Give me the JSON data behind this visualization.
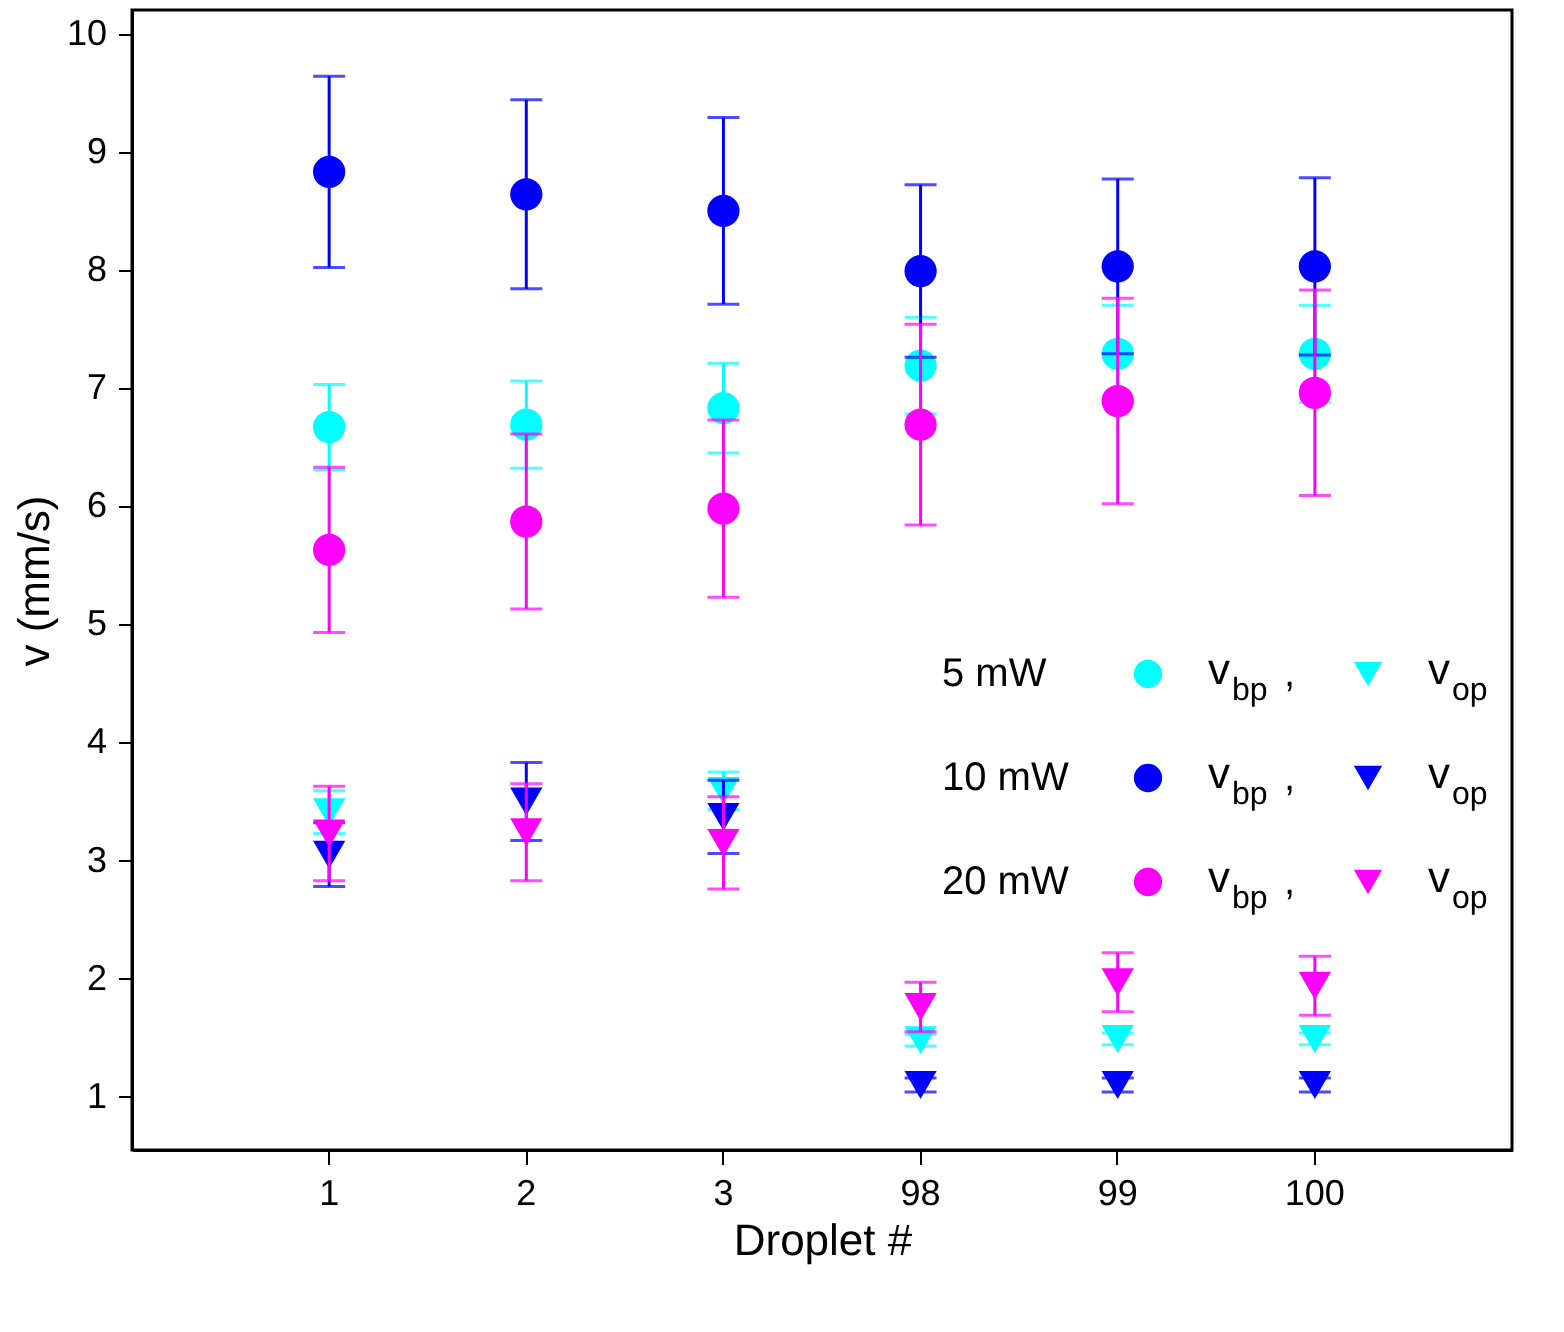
{
  "chart_data": {
    "type": "scatter",
    "xlabel": "Droplet #",
    "ylabel": "v (mm/s)",
    "categories": [
      "1",
      "2",
      "3",
      "98",
      "99",
      "100"
    ],
    "ylim": [
      0.55,
      10.2
    ],
    "yticks": [
      1,
      2,
      3,
      4,
      5,
      6,
      7,
      8,
      9,
      10
    ],
    "grid": false,
    "legend": "right",
    "annotations": [
      "5 mW",
      "10 mW",
      "20 mW"
    ],
    "series": [
      {
        "name": "v$_{bp}$ ,",
        "color": "#00ffff",
        "marker": "circle",
        "values": [
          6.67,
          6.69,
          6.83,
          7.19,
          7.29,
          7.29
        ],
        "errors": [
          0.36,
          0.37,
          0.38,
          0.41,
          0.41,
          0.41
        ]
      },
      {
        "name": "v$_{op}$",
        "color": "#00ffff",
        "marker": "triangle",
        "values": [
          3.41,
          null,
          3.59,
          1.48,
          1.49,
          1.49
        ],
        "errors": [
          0.18,
          null,
          0.16,
          0.05,
          0.05,
          0.05
        ]
      },
      {
        "name": "v$_{bp}$ ,",
        "color": "#0000ff",
        "marker": "circle",
        "values": [
          8.83,
          8.64,
          8.5,
          7.99,
          8.03,
          8.03
        ],
        "errors": [
          0.81,
          0.8,
          0.79,
          0.73,
          0.74,
          0.75
        ]
      },
      {
        "name": "v$_{op}$",
        "color": "#0000ff",
        "marker": "triangle",
        "values": [
          3.05,
          3.5,
          3.37,
          1.1,
          1.1,
          1.1
        ],
        "errors": [
          0.27,
          0.33,
          0.31,
          0.06,
          0.06,
          0.06
        ]
      },
      {
        "name": "v$_{bp}$ ,",
        "color": "#ff00ff",
        "marker": "circle",
        "values": [
          5.63,
          5.87,
          5.98,
          6.69,
          6.89,
          6.96
        ],
        "errors": [
          0.7,
          0.74,
          0.75,
          0.85,
          0.87,
          0.87
        ]
      },
      {
        "name": "v$_{op}$",
        "color": "#ff00ff",
        "marker": "triangle",
        "values": [
          3.23,
          3.24,
          3.15,
          1.76,
          1.97,
          1.94
        ],
        "errors": [
          0.4,
          0.41,
          0.39,
          0.21,
          0.25,
          0.25
        ]
      }
    ]
  }
}
